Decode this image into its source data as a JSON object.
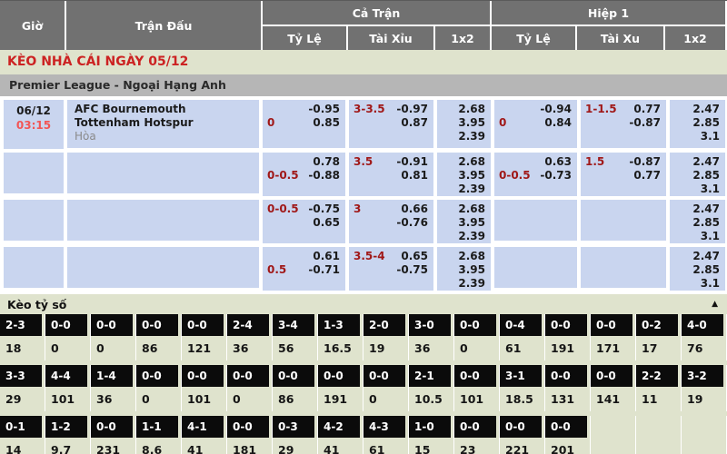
{
  "header": {
    "col_time": "Giờ",
    "col_match": "Trận Đấu",
    "col_fulltime": "Cả Trận",
    "col_half1": "Hiệp 1",
    "ft_sub": {
      "handicap": "Tỷ Lệ",
      "overunder": "Tài Xỉu",
      "x12": "1x2"
    },
    "h1_sub": {
      "handicap": "Tỷ Lệ",
      "overunder": "Tài Xu",
      "x12": "1x2"
    }
  },
  "banner": {
    "title": "KÈO NHÀ CÁI NGÀY 05/12"
  },
  "league": {
    "name": "Premier League - Ngoại Hạng Anh"
  },
  "match": {
    "date": "06/12",
    "time": "03:15",
    "home": "AFC Bournemouth",
    "away": "Tottenham Hotspur",
    "draw_label": "Hòa"
  },
  "colors": {
    "accent_red": "#cc2222",
    "odds_red": "#a01818",
    "time_red": "#f25555",
    "cell_blue": "#c9d5ef",
    "header_gray": "#717171",
    "page_bg": "#dfe3cd"
  },
  "odds_rows": [
    {
      "ft_hdp": {
        "l1_left": "",
        "l1_right": "-0.95",
        "l2_left": "0",
        "l2_right": "0.85"
      },
      "ft_ou": {
        "l1_left": "3-3.5",
        "l1_right": "-0.97",
        "l2_left": "",
        "l2_right": "0.87"
      },
      "ft_1x2": [
        "2.68",
        "3.95",
        "2.39"
      ],
      "h1_hdp": {
        "l1_left": "",
        "l1_right": "-0.94",
        "l2_left": "0",
        "l2_right": "0.84"
      },
      "h1_ou": {
        "l1_left": "1-1.5",
        "l1_right": "0.77",
        "l2_left": "",
        "l2_right": "-0.87"
      },
      "h1_1x2": [
        "2.47",
        "2.85",
        "3.1"
      ]
    },
    {
      "ft_hdp": {
        "l1_left": "",
        "l1_right": "0.78",
        "l2_left": "0-0.5",
        "l2_right": "-0.88"
      },
      "ft_ou": {
        "l1_left": "3.5",
        "l1_right": "-0.91",
        "l2_left": "",
        "l2_right": "0.81"
      },
      "ft_1x2": [
        "2.68",
        "3.95",
        "2.39"
      ],
      "h1_hdp": {
        "l1_left": "",
        "l1_right": "0.63",
        "l2_left": "0-0.5",
        "l2_right": "-0.73"
      },
      "h1_ou": {
        "l1_left": "1.5",
        "l1_right": "-0.87",
        "l2_left": "",
        "l2_right": "0.77"
      },
      "h1_1x2": [
        "2.47",
        "2.85",
        "3.1"
      ]
    },
    {
      "ft_hdp": {
        "l1_left": "0-0.5",
        "l1_right": "-0.75",
        "l2_left": "",
        "l2_right": "0.65"
      },
      "ft_ou": {
        "l1_left": "3",
        "l1_right": "0.66",
        "l2_left": "",
        "l2_right": "-0.76"
      },
      "ft_1x2": [
        "2.68",
        "3.95",
        "2.39"
      ],
      "h1_hdp": {
        "l1_left": "",
        "l1_right": "",
        "l2_left": "",
        "l2_right": ""
      },
      "h1_ou": {
        "l1_left": "",
        "l1_right": "",
        "l2_left": "",
        "l2_right": ""
      },
      "h1_1x2": [
        "2.47",
        "2.85",
        "3.1"
      ]
    },
    {
      "ft_hdp": {
        "l1_left": "",
        "l1_right": "0.61",
        "l2_left": "0.5",
        "l2_right": "-0.71"
      },
      "ft_ou": {
        "l1_left": "3.5-4",
        "l1_right": "0.65",
        "l2_left": "",
        "l2_right": "-0.75"
      },
      "ft_1x2": [
        "2.68",
        "3.95",
        "2.39"
      ],
      "h1_hdp": {
        "l1_left": "",
        "l1_right": "",
        "l2_left": "",
        "l2_right": ""
      },
      "h1_ou": {
        "l1_left": "",
        "l1_right": "",
        "l2_left": "",
        "l2_right": ""
      },
      "h1_1x2": [
        "2.47",
        "2.85",
        "3.1"
      ]
    }
  ],
  "score_section": {
    "title": "Kèo tỷ số",
    "collapse_icon": "▲"
  },
  "score_rows": [
    {
      "scores": [
        "2-3",
        "0-0",
        "0-0",
        "0-0",
        "0-0",
        "2-4",
        "3-4",
        "1-3",
        "2-0",
        "3-0",
        "0-0",
        "0-4",
        "0-0",
        "0-0",
        "0-2",
        "4-0"
      ],
      "values": [
        "18",
        "0",
        "0",
        "86",
        "121",
        "36",
        "56",
        "16.5",
        "19",
        "36",
        "0",
        "61",
        "191",
        "171",
        "17",
        "76"
      ]
    },
    {
      "scores": [
        "3-3",
        "4-4",
        "1-4",
        "0-0",
        "0-0",
        "0-0",
        "0-0",
        "0-0",
        "0-0",
        "2-1",
        "0-0",
        "3-1",
        "0-0",
        "0-0",
        "2-2",
        "3-2"
      ],
      "values": [
        "29",
        "101",
        "36",
        "0",
        "101",
        "0",
        "86",
        "191",
        "0",
        "10.5",
        "101",
        "18.5",
        "131",
        "141",
        "11",
        "19"
      ]
    },
    {
      "scores": [
        "0-1",
        "1-2",
        "0-0",
        "1-1",
        "4-1",
        "0-0",
        "0-3",
        "4-2",
        "4-3",
        "1-0",
        "0-0",
        "0-0",
        "0-0",
        "",
        "",
        ""
      ],
      "values": [
        "14",
        "9.7",
        "231",
        "8.6",
        "41",
        "181",
        "29",
        "41",
        "61",
        "15",
        "23",
        "221",
        "201",
        "",
        "",
        ""
      ]
    }
  ]
}
